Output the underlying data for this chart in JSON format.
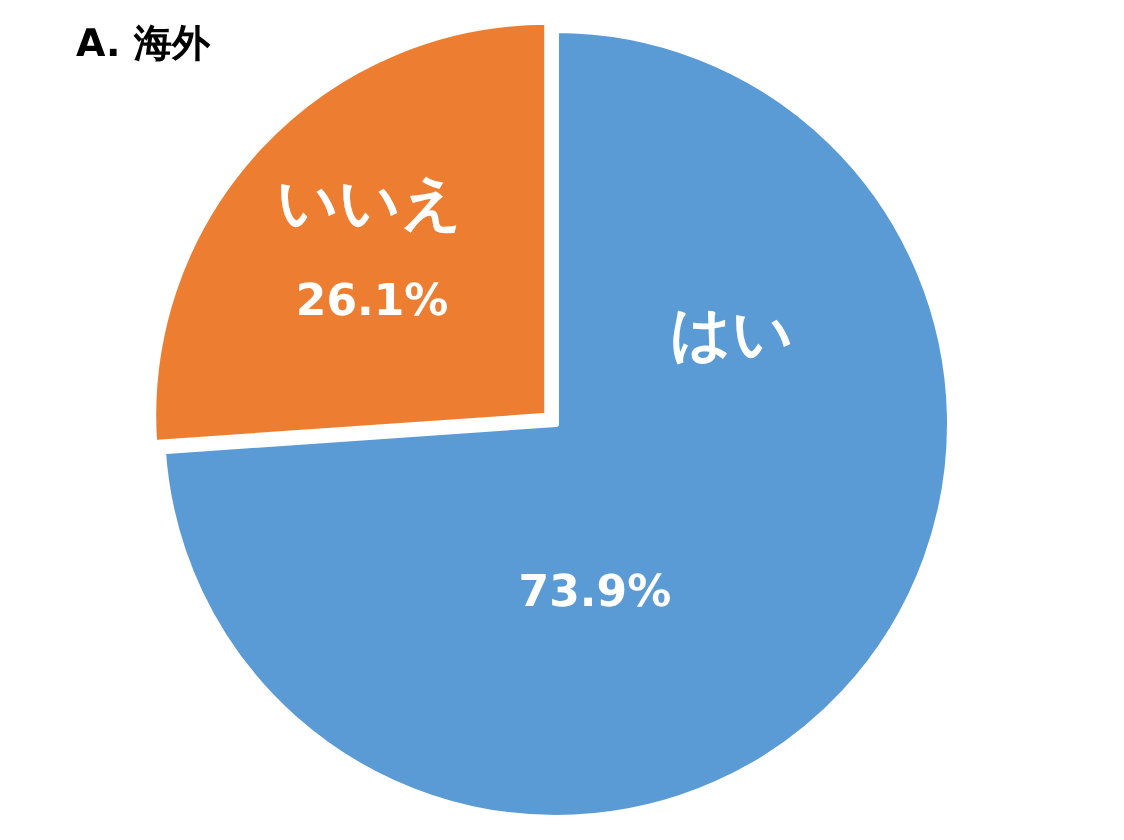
{
  "chart_data": {
    "type": "pie",
    "title": "A. 海外",
    "categories": [
      "はい",
      "いいえ"
    ],
    "values": [
      73.9,
      26.1
    ],
    "colors": [
      "#5b9bd5",
      "#ed7d31"
    ],
    "value_labels": [
      "73.9%",
      "26.1%"
    ]
  }
}
